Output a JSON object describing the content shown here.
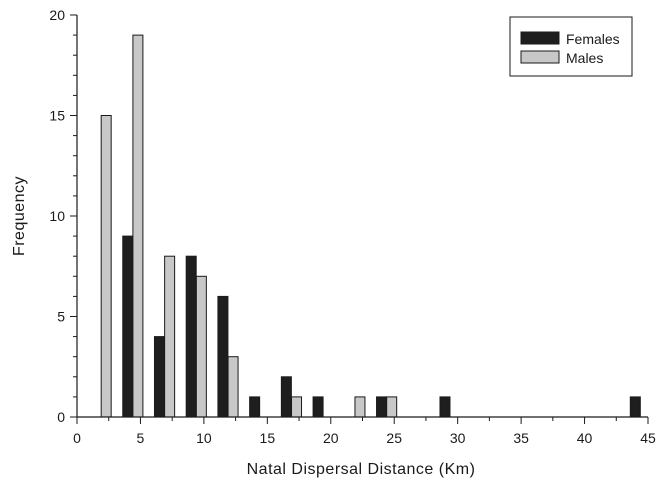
{
  "chart_data": {
    "type": "bar",
    "title": "",
    "xlabel": "Natal Dispersal Distance (Km)",
    "ylabel": "Frequency",
    "xlim": [
      0,
      45
    ],
    "ylim": [
      0,
      20
    ],
    "x_ticks": [
      "0",
      "5",
      "10",
      "15",
      "20",
      "25",
      "30",
      "35",
      "40",
      "45"
    ],
    "y_ticks": [
      "0",
      "5",
      "10",
      "15",
      "20"
    ],
    "grid": false,
    "legend_position": "top-right",
    "series": [
      {
        "name": "Females",
        "color": "#1e1e1e",
        "points": [
          {
            "x": 4,
            "y": 9
          },
          {
            "x": 6.5,
            "y": 4
          },
          {
            "x": 9,
            "y": 8
          },
          {
            "x": 11.5,
            "y": 6
          },
          {
            "x": 14,
            "y": 1
          },
          {
            "x": 16.5,
            "y": 2
          },
          {
            "x": 19,
            "y": 1
          },
          {
            "x": 24,
            "y": 1
          },
          {
            "x": 29,
            "y": 1
          },
          {
            "x": 44,
            "y": 1
          }
        ]
      },
      {
        "name": "Males",
        "color": "#c8c8c8",
        "points": [
          {
            "x": 2.3,
            "y": 15
          },
          {
            "x": 4.8,
            "y": 19
          },
          {
            "x": 7.3,
            "y": 8
          },
          {
            "x": 9.8,
            "y": 7
          },
          {
            "x": 12.3,
            "y": 3
          },
          {
            "x": 17.3,
            "y": 1
          },
          {
            "x": 22.3,
            "y": 1
          },
          {
            "x": 24.8,
            "y": 1
          }
        ]
      }
    ]
  }
}
